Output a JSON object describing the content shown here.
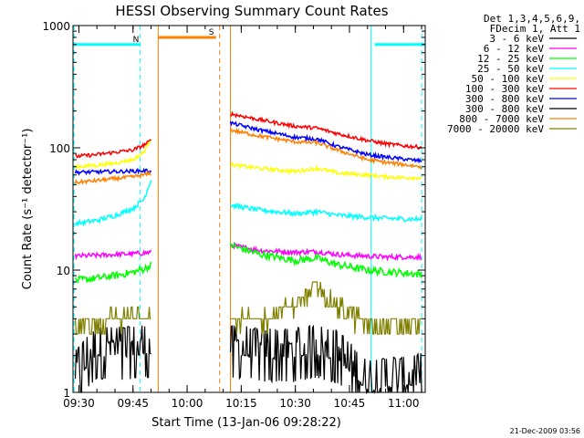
{
  "chart_data": {
    "type": "line",
    "title": "HESSI Observing Summary Count Rates",
    "xlabel": "Start Time (13-Jan-06 09:28:22)",
    "ylabel": "Count Rate (s⁻¹ detector⁻¹)",
    "yscale": "log",
    "ylim": [
      1,
      1000
    ],
    "xlim": [
      "09:28:22",
      "11:06:00"
    ],
    "x_ticks": [
      "09:30",
      "09:45",
      "10:00",
      "10:15",
      "10:30",
      "10:45",
      "11:00"
    ],
    "y_ticks": [
      "1",
      "10",
      "100",
      "1000"
    ],
    "grid": false,
    "legend_title": [
      "Det 1,3,4,5,6,9,",
      "FDecim 1, Att 1"
    ],
    "legend_position": "right",
    "footer": "21-Dec-2009 03:56",
    "gap": [
      "09:50",
      "10:12"
    ],
    "series": [
      {
        "name": "3 - 6 keV",
        "color": "#000000",
        "x": [
          "09:29",
          "09:35",
          "09:40",
          "09:45",
          "09:48",
          "09:50",
          "10:12",
          "10:20",
          "10:30",
          "10:36",
          "10:42",
          "10:50",
          "10:55",
          "11:00",
          "11:05"
        ],
        "values": [
          1.6,
          2.5,
          2.5,
          2.5,
          2.6,
          2.6,
          2.6,
          2.4,
          2.4,
          2.6,
          2.3,
          1.3,
          1.4,
          1.4,
          1.5
        ]
      },
      {
        "name": "6 - 12 keV",
        "color": "#ff00ff",
        "x": [
          "09:29",
          "09:35",
          "09:40",
          "09:45",
          "09:48",
          "09:50",
          "10:12",
          "10:20",
          "10:30",
          "10:36",
          "10:42",
          "10:50",
          "10:55",
          "11:00",
          "11:05"
        ],
        "values": [
          13,
          13.2,
          13.4,
          13.6,
          13.8,
          14,
          16,
          14.5,
          14,
          14.2,
          13.4,
          13,
          12.8,
          12.8,
          12.8
        ]
      },
      {
        "name": "12 - 25 keV",
        "color": "#00ff00",
        "x": [
          "09:29",
          "09:35",
          "09:40",
          "09:45",
          "09:48",
          "09:50",
          "10:12",
          "10:20",
          "10:30",
          "10:36",
          "10:42",
          "10:50",
          "10:55",
          "11:00",
          "11:05"
        ],
        "values": [
          8.2,
          8.6,
          9,
          9.6,
          10.2,
          11,
          16,
          13.5,
          12,
          12.5,
          11,
          10,
          9.7,
          9.5,
          9.2
        ]
      },
      {
        "name": "25 - 50 keV",
        "color": "#00ffff",
        "x": [
          "09:29",
          "09:35",
          "09:40",
          "09:45",
          "09:48",
          "09:50",
          "10:12",
          "10:20",
          "10:30",
          "10:36",
          "10:42",
          "10:50",
          "10:55",
          "11:00",
          "11:05"
        ],
        "values": [
          24,
          25.5,
          28,
          32,
          38,
          55,
          34,
          31,
          29,
          30,
          28,
          27,
          26.5,
          26.2,
          26
        ]
      },
      {
        "name": "50 - 100 keV",
        "color": "#ffff00",
        "x": [
          "09:29",
          "09:35",
          "09:40",
          "09:45",
          "09:48",
          "09:50",
          "10:12",
          "10:20",
          "10:30",
          "10:36",
          "10:42",
          "10:50",
          "10:55",
          "11:00",
          "11:05"
        ],
        "values": [
          70,
          72,
          75,
          80,
          92,
          120,
          73,
          68,
          64,
          68,
          62,
          60,
          58,
          57,
          57
        ]
      },
      {
        "name": "100 - 300 keV",
        "color": "#ff0000",
        "x": [
          "09:29",
          "09:35",
          "09:40",
          "09:45",
          "09:48",
          "09:50",
          "10:12",
          "10:20",
          "10:30",
          "10:36",
          "10:42",
          "10:50",
          "10:55",
          "11:00",
          "11:05"
        ],
        "values": [
          85,
          88,
          92,
          96,
          105,
          115,
          190,
          170,
          150,
          145,
          130,
          115,
          108,
          104,
          101
        ]
      },
      {
        "name": "300 - 800 keV",
        "color": "#0000ff",
        "x": [
          "09:29",
          "09:35",
          "09:40",
          "09:45",
          "09:48",
          "09:50",
          "10:12",
          "10:20",
          "10:30",
          "10:36",
          "10:42",
          "10:50",
          "10:55",
          "11:00",
          "11:05"
        ],
        "values": [
          63,
          63.5,
          64,
          64.5,
          65,
          65,
          160,
          140,
          122,
          118,
          102,
          88,
          84,
          81,
          78
        ]
      },
      {
        "name": "300 - 800 keV",
        "color": "#000000",
        "note": "legend lists this entry twice with different colours",
        "x": [],
        "values": []
      },
      {
        "name": "800 - 7000 keV",
        "color": "#ff8000",
        "x": [
          "09:29",
          "09:35",
          "09:40",
          "09:45",
          "09:48",
          "09:50",
          "10:12",
          "10:20",
          "10:30",
          "10:36",
          "10:42",
          "10:50",
          "10:55",
          "11:00",
          "11:05"
        ],
        "values": [
          52,
          54,
          56,
          58,
          60,
          62,
          140,
          125,
          112,
          110,
          95,
          80,
          76,
          73,
          70
        ]
      },
      {
        "name": "7000 - 20000 keV",
        "color": "#808000",
        "x": [
          "09:29",
          "09:35",
          "09:40",
          "09:45",
          "09:48",
          "09:50",
          "10:12",
          "10:20",
          "10:30",
          "10:36",
          "10:42",
          "10:50",
          "10:55",
          "11:00",
          "11:05"
        ],
        "values": [
          3.5,
          3.6,
          4,
          4.2,
          4.5,
          5,
          4,
          3.8,
          5.3,
          7.2,
          5,
          3.6,
          3.5,
          3.6,
          3.6
        ]
      }
    ],
    "flag_lines": [
      {
        "label": "N",
        "color": "#00ffff",
        "level": 700,
        "from": "09:28:22",
        "to": "09:47"
      },
      {
        "label": "S",
        "color": "#ff8000",
        "level": 800,
        "from": "09:52",
        "to": "10:08"
      },
      {
        "label": "",
        "color": "#00ffff",
        "level": 700,
        "from": "10:52",
        "to": "11:06"
      }
    ],
    "markers": [
      {
        "time": "09:28:40",
        "color": "#00ffff",
        "dashed": true
      },
      {
        "time": "09:47",
        "color": "#00ffff",
        "dashed": true
      },
      {
        "time": "09:52",
        "color": "#ff8000",
        "dashed": false
      },
      {
        "time": "10:09",
        "color": "#ff8000",
        "dashed": true
      },
      {
        "time": "10:12",
        "color": "#ff8000",
        "dashed": false
      },
      {
        "time": "10:51",
        "color": "#00ffff",
        "dashed": false
      },
      {
        "time": "11:05",
        "color": "#00ffff",
        "dashed": true
      }
    ]
  }
}
